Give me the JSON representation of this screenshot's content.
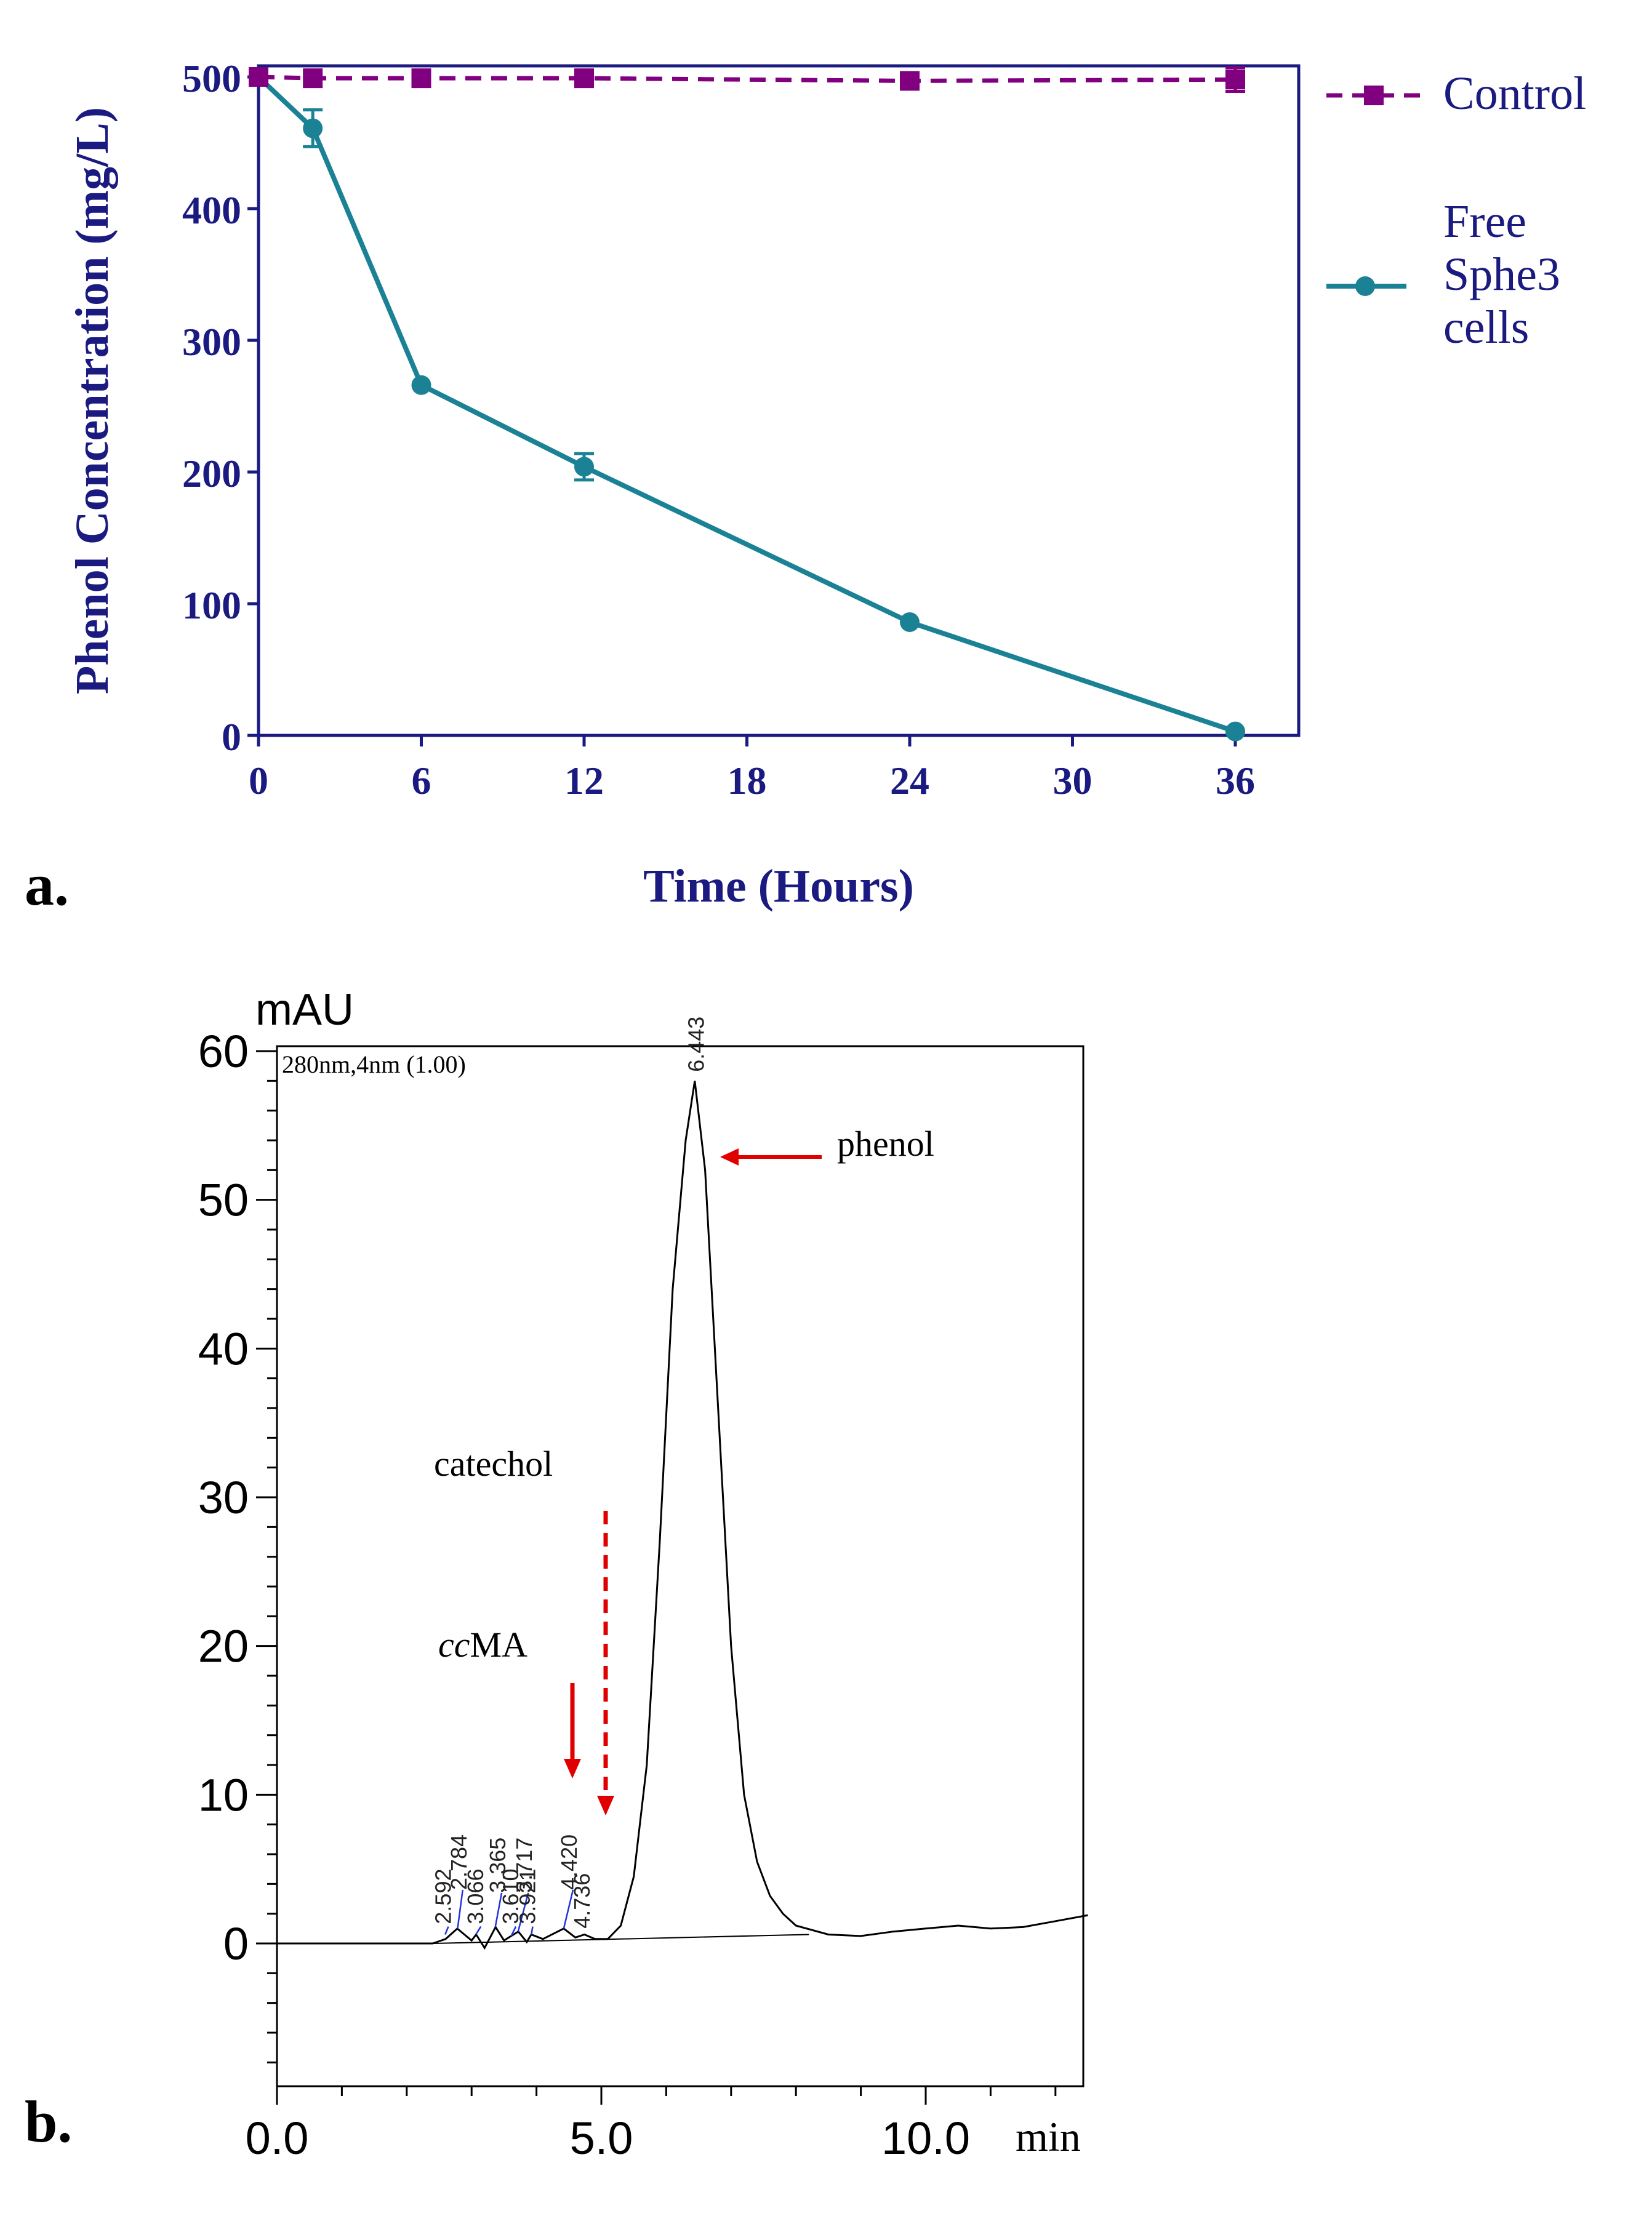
{
  "chart_data": [
    {
      "panel_label": "a.",
      "type": "line",
      "title": "",
      "xlabel": "Time (Hours)",
      "ylabel": "Phenol Concentration (mg/L)",
      "xlim": [
        0,
        38
      ],
      "ylim": [
        0,
        525
      ],
      "xticks": [
        "0",
        "6",
        "12",
        "18",
        "24",
        "30",
        "36"
      ],
      "yticks": [
        "0",
        "100",
        "200",
        "300",
        "400",
        "500"
      ],
      "legend_position": "right",
      "series": [
        {
          "name": "Control",
          "legend_lines": [
            "Control"
          ],
          "color": "#800080",
          "marker": "square",
          "line_style": "dashed",
          "x": [
            0,
            2,
            6,
            12,
            24,
            36
          ],
          "y": [
            500,
            499,
            499,
            499,
            497,
            498
          ],
          "error": [
            0,
            0,
            0,
            0,
            0,
            9
          ]
        },
        {
          "name": "Free Sphe3 cells",
          "legend_lines": [
            "Free",
            "Sphe3",
            "cells"
          ],
          "color": "#1b8296",
          "marker": "circle",
          "line_style": "solid",
          "x": [
            0,
            2,
            6,
            12,
            24,
            36
          ],
          "y": [
            500,
            461,
            266,
            204,
            86,
            3
          ],
          "error": [
            0,
            14,
            0,
            10,
            0,
            0
          ]
        }
      ]
    },
    {
      "panel_label": "b.",
      "type": "line",
      "title": "",
      "detector_label": "280nm,4nm (1.00)",
      "ylabel": "mAU",
      "xlabel": "min",
      "xlim": [
        0,
        12.5
      ],
      "ylim": [
        -10,
        61
      ],
      "xticks": [
        "0.0",
        "5.0",
        "10.0"
      ],
      "yticks": [
        "0",
        "10",
        "20",
        "30",
        "40",
        "50",
        "60"
      ],
      "peak_labels": [
        "2.592",
        "2.784",
        "3.066",
        "3.365",
        "3.610",
        "3.717",
        "3.921",
        "4.420",
        "4.736",
        "6.443"
      ],
      "annotations": {
        "phenol": "phenol",
        "catechol": "catechol",
        "ccma_italic": "cc",
        "ccma_rest": "MA"
      },
      "trace": {
        "x": [
          0,
          2.4,
          2.6,
          2.78,
          3.0,
          3.07,
          3.2,
          3.37,
          3.5,
          3.61,
          3.72,
          3.85,
          3.92,
          4.1,
          4.42,
          4.6,
          4.74,
          4.9,
          5.1,
          5.3,
          5.5,
          5.7,
          5.9,
          6.1,
          6.3,
          6.44,
          6.6,
          6.8,
          7.0,
          7.2,
          7.4,
          7.6,
          7.8,
          8.0,
          8.5,
          9.0,
          9.5,
          10.0,
          10.5,
          11.0,
          11.5,
          12.0,
          12.5
        ],
        "y": [
          0,
          0,
          0.3,
          1.0,
          0.2,
          0.6,
          -0.3,
          1.1,
          0.2,
          0.5,
          0.8,
          0.1,
          0.6,
          0.3,
          1.0,
          0.4,
          0.6,
          0.3,
          0.3,
          1.2,
          4.5,
          12.0,
          27.0,
          44.0,
          54.0,
          58.0,
          52.0,
          36.0,
          20.0,
          10.0,
          5.5,
          3.2,
          2.0,
          1.2,
          0.6,
          0.5,
          0.8,
          1.0,
          1.2,
          1.0,
          1.1,
          1.5,
          1.9
        ]
      }
    }
  ]
}
